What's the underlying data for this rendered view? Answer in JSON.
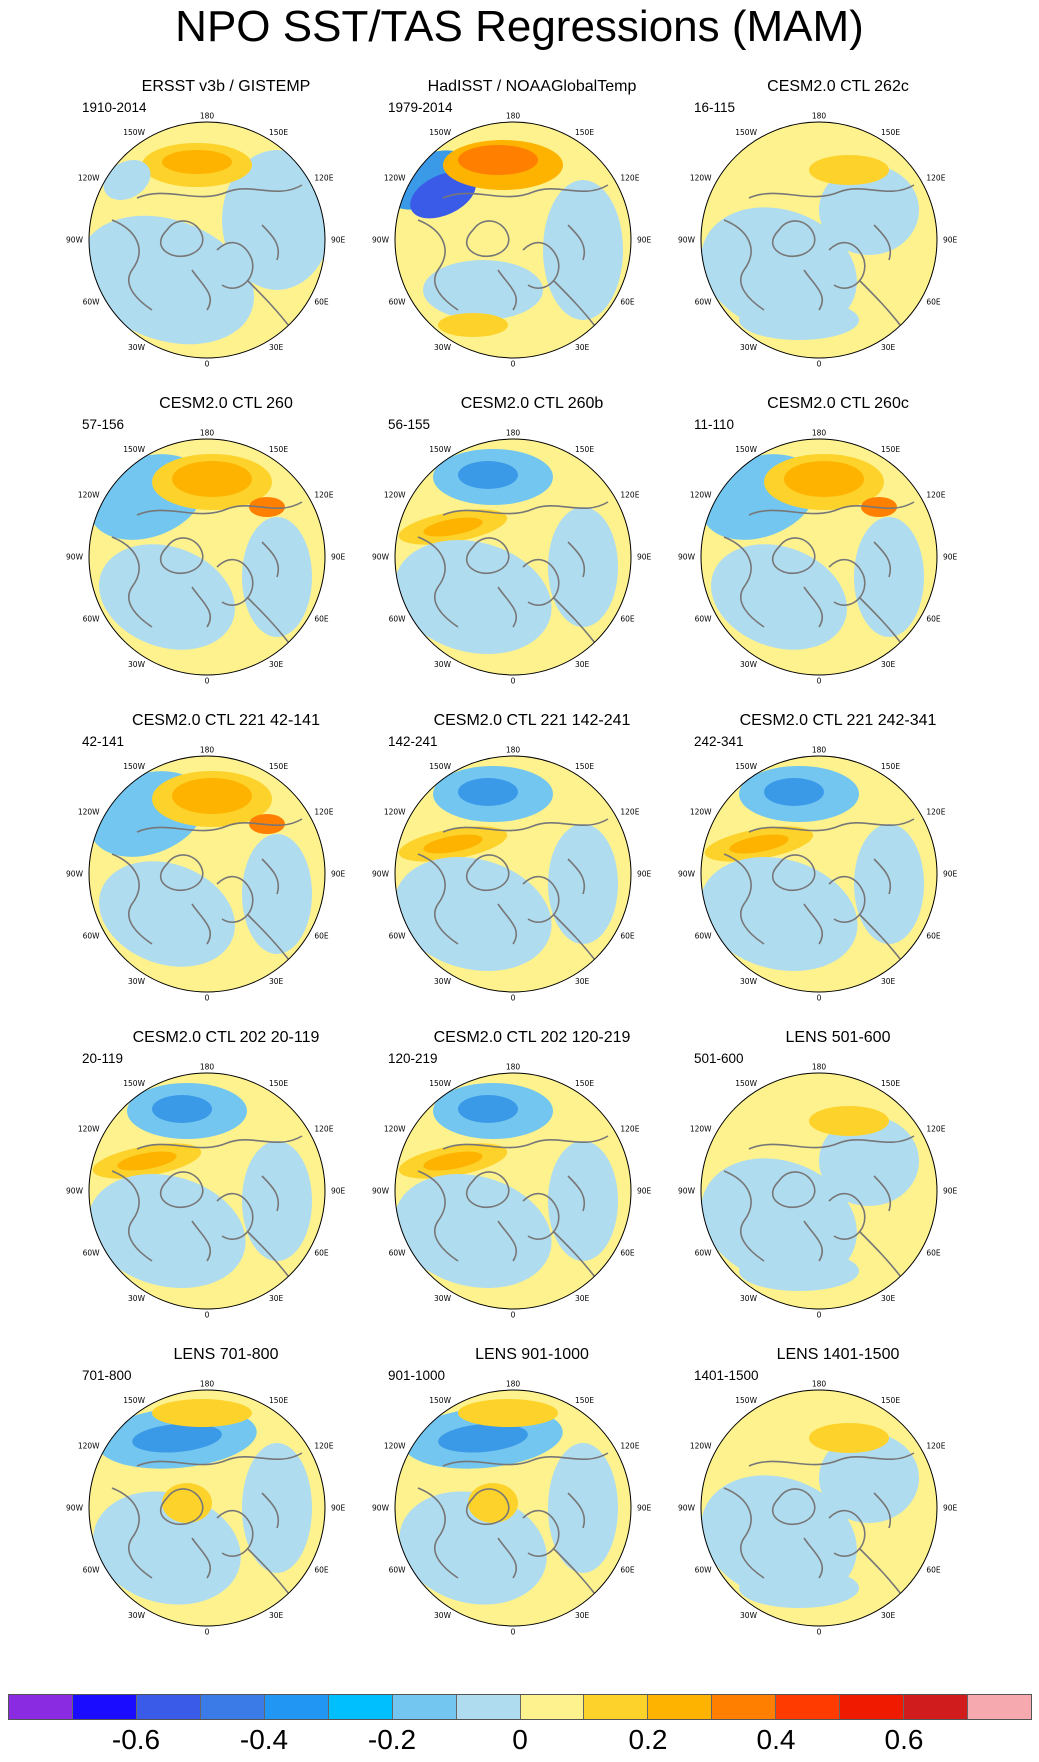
{
  "title": "NPO SST/TAS Regressions (MAM)",
  "map_labels": [
    "180",
    "150E",
    "120E",
    "90E",
    "60E",
    "30E",
    "0",
    "30W",
    "60W",
    "90W",
    "120W",
    "150W"
  ],
  "panels": [
    {
      "title": "ERSST v3b / GISTEMP",
      "years": "1910-2014",
      "style": "obs1"
    },
    {
      "title": "HadISST / NOAAGlobalTemp",
      "years": "1979-2014",
      "style": "obs2"
    },
    {
      "title": "CESM2.0 CTL 262c",
      "years": "16-115",
      "style": "weak"
    },
    {
      "title": "CESM2.0 CTL 260",
      "years": "57-156",
      "style": "warm"
    },
    {
      "title": "CESM2.0 CTL 260b",
      "years": "56-155",
      "style": "cool"
    },
    {
      "title": "CESM2.0 CTL 260c",
      "years": "11-110",
      "style": "warm"
    },
    {
      "title": "CESM2.0 CTL 221 42-141",
      "years": "42-141",
      "style": "warm"
    },
    {
      "title": "CESM2.0 CTL 221 142-241",
      "years": "142-241",
      "style": "cool"
    },
    {
      "title": "CESM2.0 CTL 221 242-341",
      "years": "242-341",
      "style": "cool"
    },
    {
      "title": "CESM2.0 CTL 202 20-119",
      "years": "20-119",
      "style": "cool"
    },
    {
      "title": "CESM2.0 CTL 202 120-219",
      "years": "120-219",
      "style": "cool"
    },
    {
      "title": "LENS 501-600",
      "years": "501-600",
      "style": "weak"
    },
    {
      "title": "LENS 701-800",
      "years": "701-800",
      "style": "lens"
    },
    {
      "title": "LENS 901-1000",
      "years": "901-1000",
      "style": "lens"
    },
    {
      "title": "LENS 1401-1500",
      "years": "1401-1500",
      "style": "weak"
    }
  ],
  "colorbar": {
    "colors": [
      "#8a2be2",
      "#1a0dff",
      "#3a5be8",
      "#3b7be8",
      "#2196f3",
      "#00bfff",
      "#73c6f0",
      "#b0dcf0",
      "#fdf28e",
      "#fdd22b",
      "#fdb300",
      "#ff7f00",
      "#ff3b00",
      "#f01a00",
      "#d01c1c",
      "#f6a9ae"
    ],
    "tick_labels": [
      "-0.6",
      "-0.4",
      "-0.2",
      "0",
      "0.2",
      "0.4",
      "0.6"
    ]
  }
}
